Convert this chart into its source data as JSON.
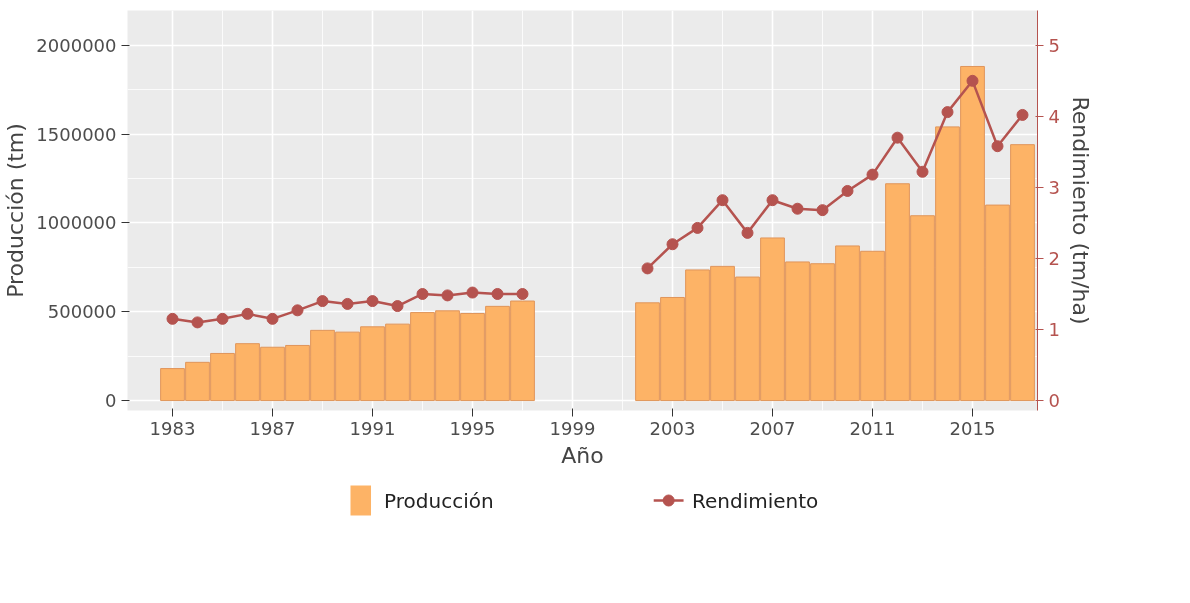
{
  "chart_data": {
    "type": "bar",
    "xlabel": "Año",
    "ylabel": "Producción (tm)",
    "y2label": "Rendimiento (tm/ha)",
    "x": [
      1983,
      1984,
      1985,
      1986,
      1987,
      1988,
      1989,
      1990,
      1991,
      1992,
      1993,
      1994,
      1995,
      1996,
      1997,
      1998,
      1999,
      2000,
      2001,
      2002,
      2003,
      2004,
      2005,
      2006,
      2007,
      2008,
      2009,
      2010,
      2011,
      2012,
      2013,
      2014,
      2015,
      2016,
      2017
    ],
    "series": [
      {
        "name": "Producción",
        "color": "#fdb366",
        "values": [
          180000,
          215000,
          265000,
          320000,
          300000,
          310000,
          395000,
          385000,
          415000,
          430000,
          495000,
          505000,
          490000,
          530000,
          560000,
          null,
          null,
          null,
          null,
          550000,
          580000,
          735000,
          755000,
          695000,
          915000,
          780000,
          770000,
          870000,
          840000,
          1220000,
          1040000,
          1540000,
          1880000,
          1100000,
          1440000
        ]
      },
      {
        "name": "Rendimiento",
        "type": "line",
        "axis": "y2",
        "color": "#b5534f",
        "values": [
          1.15,
          1.1,
          1.15,
          1.22,
          1.15,
          1.27,
          1.4,
          1.36,
          1.4,
          1.33,
          1.5,
          1.48,
          1.52,
          1.5,
          1.5,
          null,
          null,
          null,
          null,
          1.86,
          2.2,
          2.43,
          2.82,
          2.36,
          2.82,
          2.7,
          2.68,
          2.95,
          3.18,
          3.7,
          3.22,
          4.06,
          4.5,
          3.58,
          4.02
        ]
      }
    ],
    "xlim": [
      1981.2,
      2017.6
    ],
    "xticks": [
      1983,
      1987,
      1991,
      1995,
      1999,
      2003,
      2007,
      2011,
      2015
    ],
    "ylim": [
      -56000,
      2195000
    ],
    "yticks": [
      0,
      500000,
      1000000,
      1500000,
      2000000
    ],
    "y2lim": [
      -0.14,
      5.49
    ],
    "y2ticks": [
      0,
      1,
      2,
      3,
      4,
      5
    ],
    "grid": true,
    "legend": "bottom",
    "marker": "circle"
  }
}
